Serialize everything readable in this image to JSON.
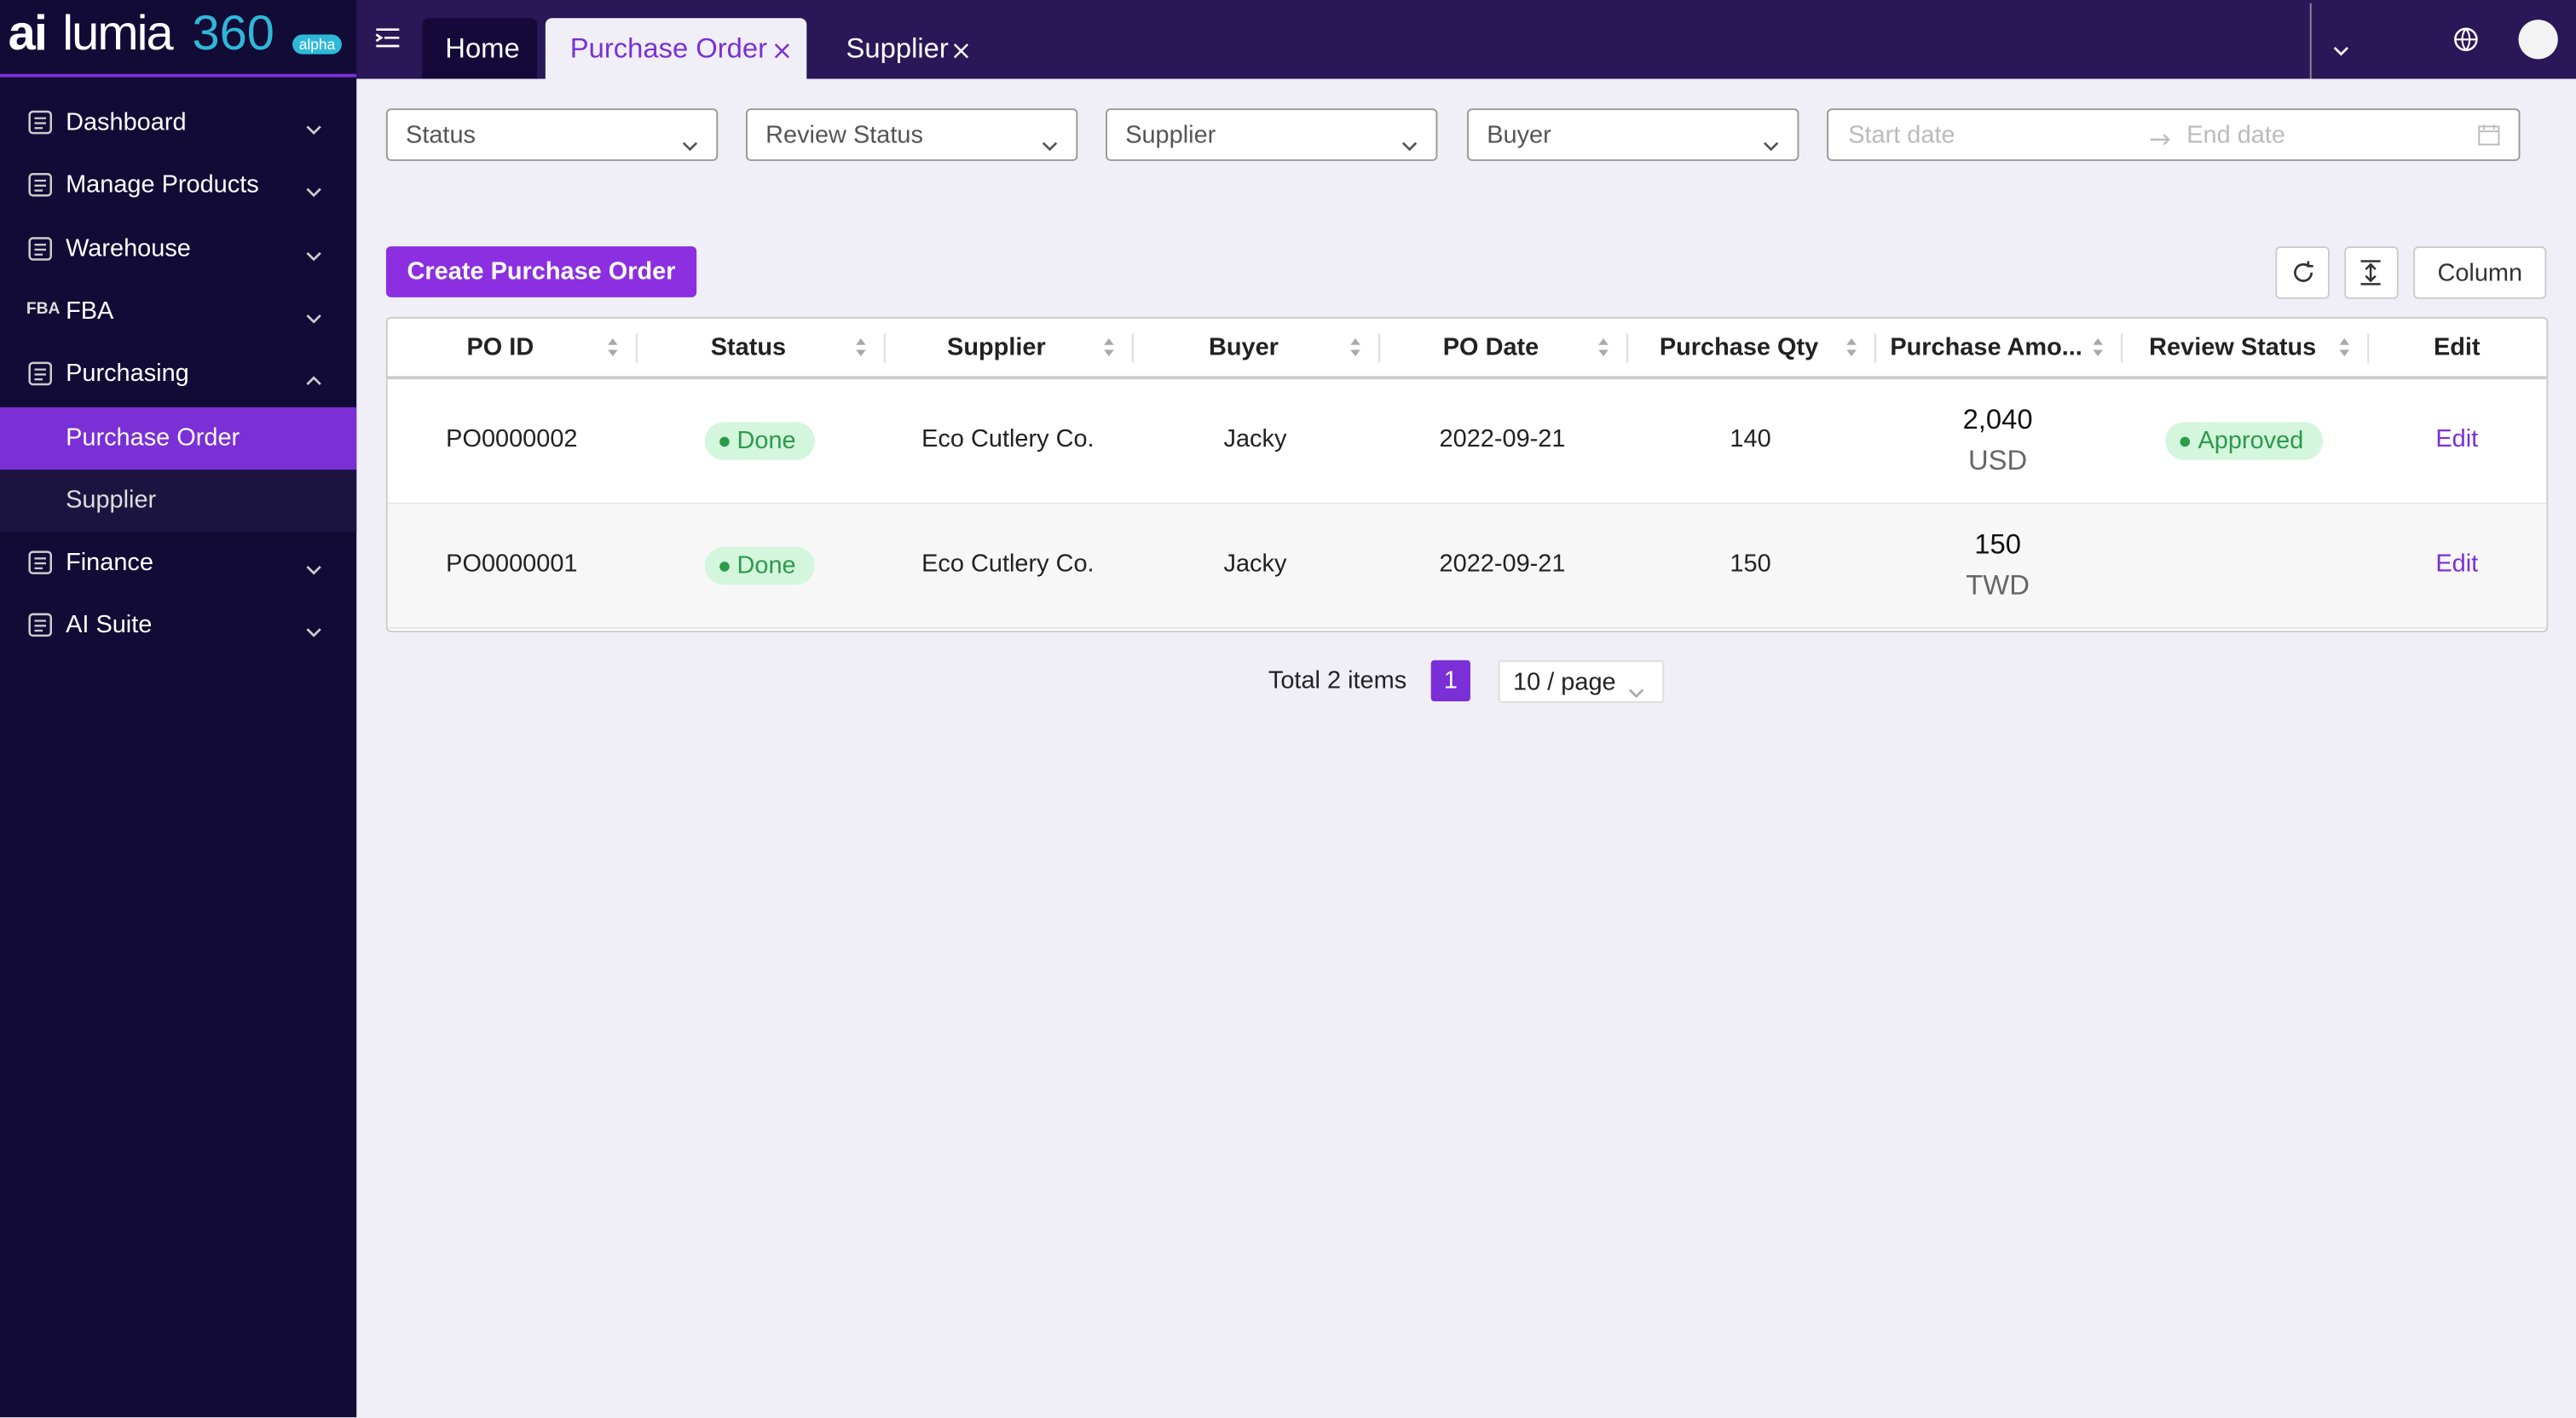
{
  "logo": {
    "prefix": "ai",
    "name": "lumia",
    "version": "360",
    "badge": "alpha"
  },
  "sidebar": {
    "menu": [
      {
        "label": "Dashboard"
      },
      {
        "label": "Manage Products"
      },
      {
        "label": "Warehouse"
      },
      {
        "label": "FBA",
        "icon": "FBA"
      },
      {
        "label": "Purchasing",
        "expanded": true,
        "children": [
          {
            "label": "Purchase Order",
            "selected": true
          },
          {
            "label": "Supplier"
          }
        ]
      },
      {
        "label": "Finance"
      },
      {
        "label": "AI Suite"
      }
    ]
  },
  "tabs": [
    {
      "label": "Home"
    },
    {
      "label": "Purchase Order",
      "active": true,
      "closable": true
    },
    {
      "label": "Supplier",
      "closable": true
    }
  ],
  "filters": [
    "Status",
    "Review Status",
    "Supplier",
    "Buyer"
  ],
  "date_range": {
    "start": "Start date",
    "end": "End date"
  },
  "toolbar": {
    "create_button": "Create Purchase Order",
    "column_button": "Column"
  },
  "table": {
    "columns": [
      {
        "label": "PO ID",
        "sortable": true
      },
      {
        "label": "Status",
        "sortable": true
      },
      {
        "label": "Supplier",
        "sortable": true
      },
      {
        "label": "Buyer",
        "sortable": true
      },
      {
        "label": "PO Date",
        "sortable": true
      },
      {
        "label": "Purchase Qty",
        "sortable": true
      },
      {
        "label": "Purchase Amo...",
        "sortable": true
      },
      {
        "label": "Review Status",
        "sortable": true
      },
      {
        "label": "Edit"
      }
    ],
    "rows": [
      {
        "po_id": "PO0000002",
        "status": "Done",
        "supplier": "Eco Cutlery Co.",
        "buyer": "Jacky",
        "po_date": "2022-09-21",
        "purchase_qty": "140",
        "amount": "2,040",
        "currency": "USD",
        "review_status": "Approved",
        "edit": "Edit"
      },
      {
        "po_id": "PO0000001",
        "status": "Done",
        "supplier": "Eco Cutlery Co.",
        "buyer": "Jacky",
        "po_date": "2022-09-21",
        "purchase_qty": "150",
        "amount": "150",
        "currency": "TWD",
        "edit": "Edit"
      }
    ]
  },
  "pagination": {
    "total": "Total 2 items",
    "page": "1",
    "page_size": "10 / page"
  }
}
